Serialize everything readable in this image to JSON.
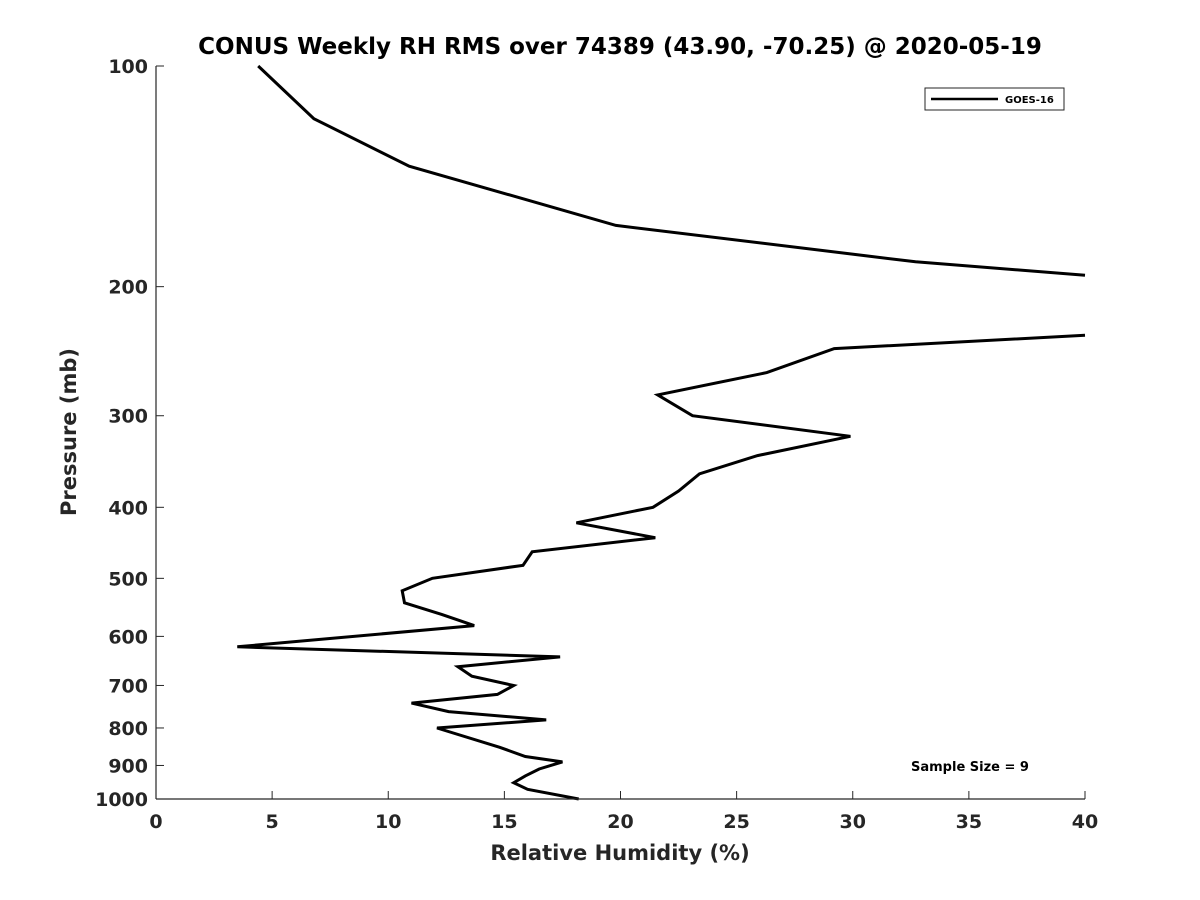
{
  "chart_data": {
    "type": "line",
    "title": "CONUS Weekly RH RMS over 74389 (43.90, -70.25) @ 2020-05-19",
    "xlabel": "Relative Humidity (%)",
    "ylabel": "Pressure (mb)",
    "xlim": [
      0,
      40
    ],
    "ylim": [
      100,
      1000
    ],
    "y_scale": "log",
    "y_reversed": true,
    "xticks": [
      0,
      5,
      10,
      15,
      20,
      25,
      30,
      35,
      40
    ],
    "yticks": [
      100,
      200,
      300,
      400,
      500,
      600,
      700,
      800,
      900,
      1000
    ],
    "grid": false,
    "legend_position": "top-right",
    "series": [
      {
        "name": "GOES-16",
        "color": "#000000",
        "points": [
          [
            4.4,
            100
          ],
          [
            6.8,
            118
          ],
          [
            10.9,
            137
          ],
          [
            19.8,
            165
          ],
          [
            32.7,
            185
          ],
          [
            40,
            193
          ],
          [
            null,
            206
          ],
          [
            40,
            233
          ],
          [
            29.2,
            243
          ],
          [
            26.3,
            262
          ],
          [
            21.6,
            281
          ],
          [
            23.1,
            300
          ],
          [
            29.9,
            320
          ],
          [
            25.9,
            340
          ],
          [
            23.4,
            360
          ],
          [
            22.5,
            380
          ],
          [
            21.4,
            400
          ],
          [
            18.1,
            420
          ],
          [
            21.5,
            440
          ],
          [
            16.2,
            460
          ],
          [
            15.8,
            480
          ],
          [
            11.9,
            500
          ],
          [
            10.6,
            520
          ],
          [
            10.7,
            540
          ],
          [
            12.3,
            560
          ],
          [
            13.7,
            580
          ],
          [
            3.5,
            620
          ],
          [
            17.4,
            640
          ],
          [
            13.0,
            660
          ],
          [
            13.6,
            680
          ],
          [
            15.4,
            700
          ],
          [
            14.7,
            720
          ],
          [
            11.0,
            740
          ],
          [
            12.6,
            760
          ],
          [
            16.8,
            780
          ],
          [
            12.1,
            800
          ],
          [
            14.8,
            850
          ],
          [
            15.9,
            875
          ],
          [
            17.5,
            890
          ],
          [
            16.5,
            910
          ],
          [
            15.9,
            930
          ],
          [
            15.4,
            950
          ],
          [
            16.0,
            970
          ],
          [
            18.2,
            1000
          ]
        ]
      }
    ],
    "annotation": "Sample Size = 9"
  }
}
